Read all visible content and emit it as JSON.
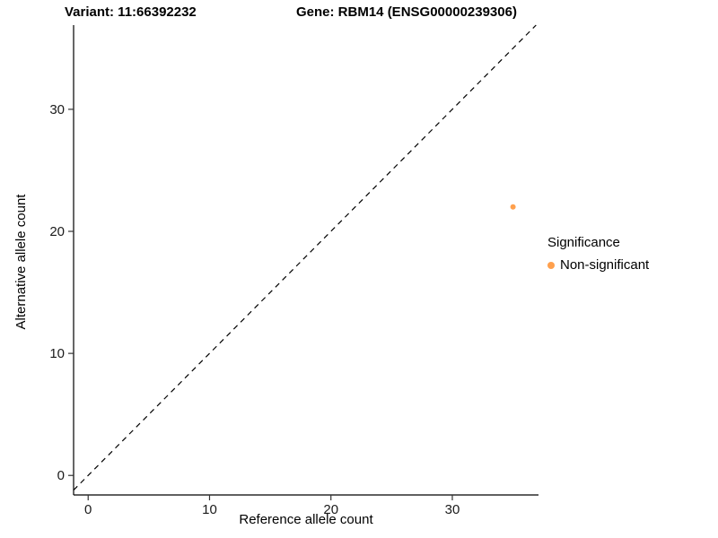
{
  "chart_data": {
    "type": "scatter",
    "title_left": "Variant: 11:66392232",
    "title_right": "Gene: RBM14 (ENSG00000239306)",
    "xlabel": "Reference allele count",
    "ylabel": "Alternative allele count",
    "xlim": [
      -1.2,
      37.1
    ],
    "ylim": [
      -1.6,
      36.9
    ],
    "xticks": [
      0,
      10,
      20,
      30
    ],
    "yticks": [
      0,
      10,
      20,
      30
    ],
    "grid": false,
    "identity_line": {
      "style": "dashed",
      "color": "#000000",
      "from": "y = x"
    },
    "points": [
      {
        "x": 35,
        "y": 22,
        "series": "Non-significant",
        "color": "#FFA04D"
      }
    ],
    "legend": {
      "position": "right",
      "title": "Significance",
      "entries": [
        {
          "label": "Non-significant",
          "color": "#FFA04D"
        }
      ]
    }
  }
}
